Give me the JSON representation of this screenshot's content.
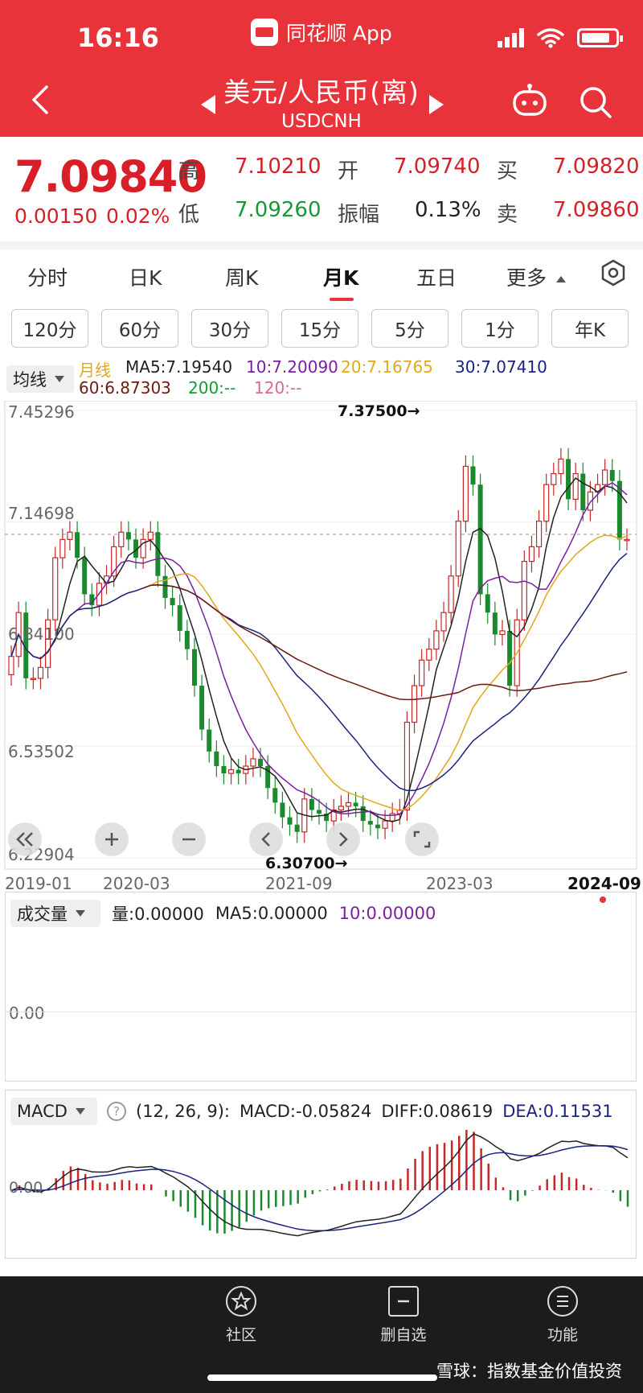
{
  "status_bar": {
    "time": "16:16",
    "app_name": "同花顺 App"
  },
  "header": {
    "title": "美元/人民币(离)",
    "subtitle": "USDCNH"
  },
  "quote": {
    "price": "7.09840",
    "change": "0.00150",
    "change_pct": "0.02%",
    "high_label": "高",
    "high": "7.10210",
    "low_label": "低",
    "low": "7.09260",
    "open_label": "开",
    "open": "7.09740",
    "amplitude_label": "振幅",
    "amplitude": "0.13%",
    "buy_label": "买",
    "buy": "7.09820",
    "sell_label": "卖",
    "sell": "7.09860"
  },
  "tabs": [
    {
      "label": "分时"
    },
    {
      "label": "日K"
    },
    {
      "label": "周K"
    },
    {
      "label": "月K",
      "active": true
    },
    {
      "label": "五日"
    },
    {
      "label": "更多"
    }
  ],
  "periods": [
    "120分",
    "60分",
    "30分",
    "15分",
    "5分",
    "1分",
    "年K"
  ],
  "ma_legend": {
    "dropdown": "均线",
    "cycle": "月线",
    "ma5": "MA5:7.19540",
    "ma10": "10:7.20090",
    "ma20": "20:7.16765",
    "ma30": "30:7.07410",
    "ma60": "60:6.87303",
    "ma200": "200:--",
    "ma120": "120:--"
  },
  "colors": {
    "header_red": "#e8333b",
    "up_red": "#c62828",
    "down_green": "#1b8a2e",
    "ma5": "#222222",
    "ma10": "#7b1fa2",
    "ma20": "#e0a91b",
    "ma30": "#1a237e",
    "ma60": "#6d1b10"
  },
  "chart": {
    "y_labels": [
      "7.45296",
      "7.14698",
      "6.84100",
      "6.53502",
      "6.22904"
    ],
    "x_labels": [
      "2019-01",
      "2020-03",
      "2021-09",
      "2023-03",
      "2024-09"
    ],
    "max_annotation": "7.37500→",
    "min_annotation": "6.30700→"
  },
  "chart_data": {
    "type": "candlestick",
    "x": [
      "2019-01",
      "2020-03",
      "2021-09",
      "2023-03",
      "2024-09"
    ],
    "y_range": [
      6.22904,
      7.45296
    ],
    "max": 7.375,
    "min": 6.307,
    "last_close": 7.0984
  },
  "volume": {
    "dropdown": "成交量",
    "vol": "量:0.00000",
    "ma5": "MA5:0.00000",
    "ma10": "10:0.00000",
    "zero": "0.00"
  },
  "macd": {
    "dropdown": "MACD",
    "params": "(12, 26, 9):",
    "macd": "MACD:-0.05824",
    "diff": "DIFF:0.08619",
    "dea": "DEA:0.11531",
    "zero_label": "0.00"
  },
  "bottom_nav": [
    {
      "label": "社区"
    },
    {
      "label": "删自选"
    },
    {
      "label": "功能"
    }
  ],
  "watermark": "雪球：指数基金价值投资"
}
